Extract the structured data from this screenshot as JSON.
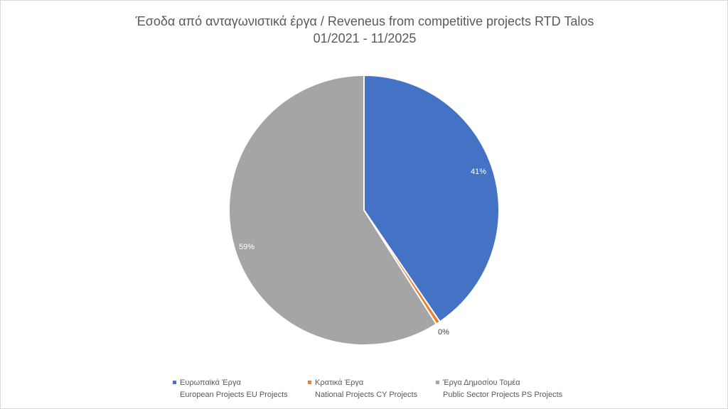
{
  "chart_data": {
    "type": "pie",
    "title": "Έσοδα από ανταγωνιστικά έργα / Reveneus from competitive projects RTD Talos",
    "subtitle": "01/2021 - 11/2025",
    "legend_position": "bottom",
    "slices": [
      {
        "label": "Ευρωπαϊκά Έργα",
        "label_en": "European Projects EU Projects",
        "value": 40.5,
        "data_label": "41%",
        "color": "#4472C4"
      },
      {
        "label": "Κρατικά Έργα",
        "label_en": "National Projects CY Projects",
        "value": 0.5,
        "data_label": "0%",
        "color": "#ED7D31"
      },
      {
        "label": "Έργα Δημοσίου Τομέα",
        "label_en": "Public Sector Projects PS Projects",
        "value": 59.0,
        "data_label": "59%",
        "color": "#A5A5A5"
      }
    ]
  }
}
